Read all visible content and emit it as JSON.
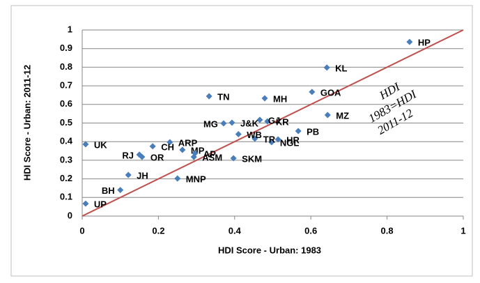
{
  "chart_data": {
    "type": "scatter",
    "x_label": "HDI Score - Urban: 1983",
    "y_label": "HDI Score - Urban: 2011-12",
    "annotation": [
      "HDI",
      "1983=HDI",
      "2011-12"
    ],
    "color": "#4a7ebb",
    "line_color": "#c0504d",
    "grid": true,
    "xlim": [
      0,
      1
    ],
    "ylim": [
      0,
      1
    ],
    "xticks": [
      0,
      0.2,
      0.4,
      0.6,
      0.8,
      1
    ],
    "yticks": [
      0,
      0.1,
      0.2,
      0.3,
      0.4,
      0.5,
      0.6,
      0.7,
      0.8,
      0.9,
      1
    ],
    "point_labels": [
      "HP",
      "KL",
      "GOA",
      "MZ",
      "PB",
      "HR",
      "NGL",
      "TR",
      "SKM",
      "KR",
      "GJ",
      "MH",
      "TN",
      "J&K",
      "MG",
      "WB",
      "ARP",
      "MP",
      "AP",
      "ASM",
      "CH",
      "RJ",
      "OR",
      "MNP",
      "JH",
      "BH",
      "UK",
      "UP"
    ],
    "x": [
      0.859,
      0.642,
      0.603,
      0.644,
      0.567,
      0.514,
      0.497,
      0.453,
      0.397,
      0.486,
      0.466,
      0.479,
      0.333,
      0.393,
      0.371,
      0.41,
      0.23,
      0.263,
      0.296,
      0.293,
      0.185,
      0.15,
      0.157,
      0.25,
      0.121,
      0.1,
      0.009,
      0.009
    ],
    "values": [
      0.936,
      0.798,
      0.667,
      0.543,
      0.457,
      0.412,
      0.397,
      0.416,
      0.311,
      0.509,
      0.517,
      0.633,
      0.644,
      0.502,
      0.498,
      0.44,
      0.397,
      0.356,
      0.337,
      0.318,
      0.375,
      0.33,
      0.318,
      0.202,
      0.221,
      0.14,
      0.386,
      0.067
    ]
  }
}
